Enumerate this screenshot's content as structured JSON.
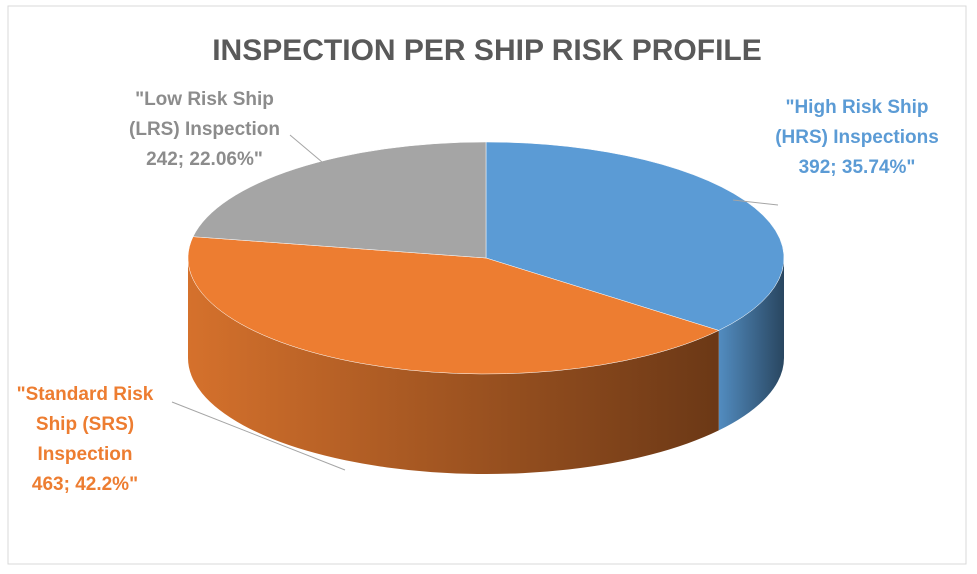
{
  "chart_data": {
    "type": "pie",
    "title": "INSPECTION PER SHIP RISK PROFILE",
    "categories": [
      "\"High Risk Ship (HRS) Inspections",
      "\"Standard Risk Ship (SRS) Inspection",
      "\"Low Risk Ship (LRS) Inspection"
    ],
    "values": [
      392,
      463,
      242
    ],
    "value_labels": [
      "392; 35.74%\"",
      "463; 42.2%\"",
      "242; 22.06%\""
    ],
    "colors": [
      "#5b9bd5",
      "#ed7d31",
      "#a5a5a5"
    ]
  }
}
